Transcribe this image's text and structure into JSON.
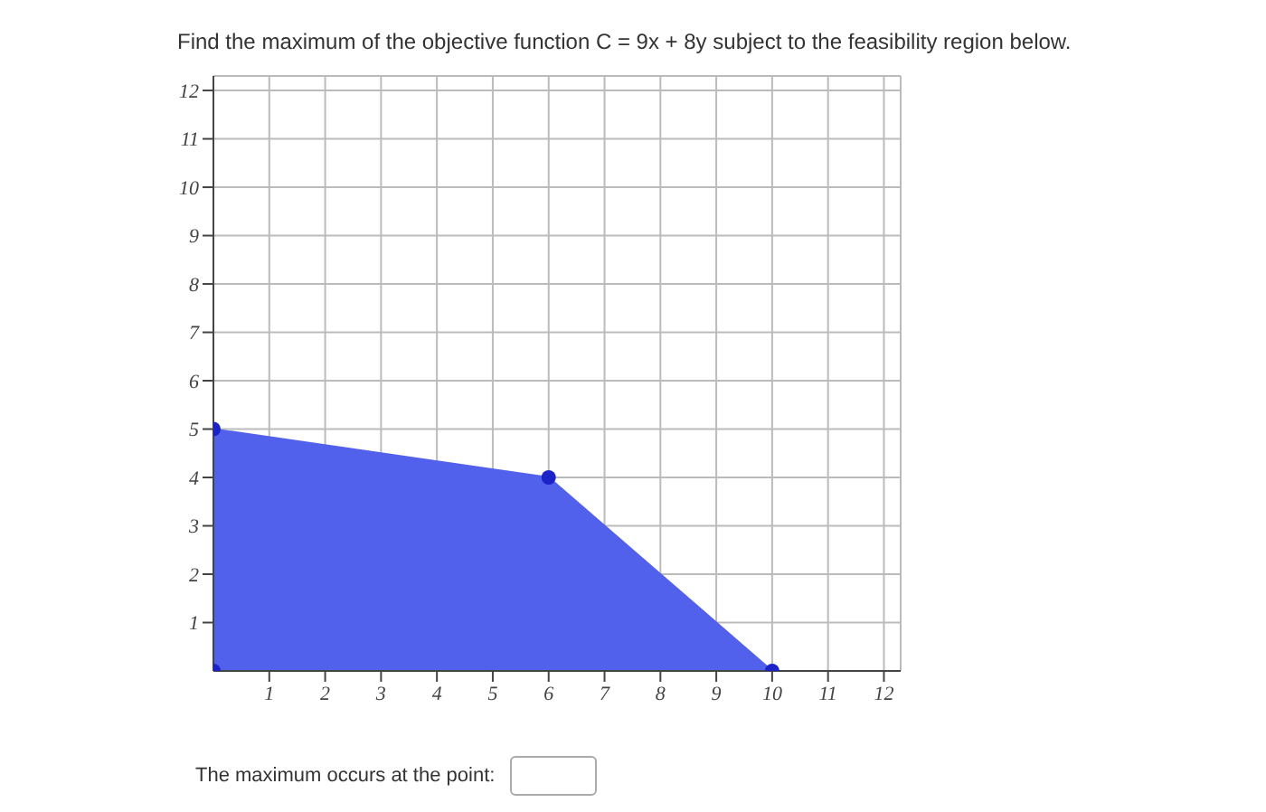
{
  "chart_data": {
    "type": "area",
    "title": "Find the maximum of the objective function C = 9x + 8y subject to the feasibility region below.",
    "series": [
      {
        "color": "#5261ec",
        "x": [
          0,
          6,
          10
        ],
        "values": [
          5,
          4,
          0
        ]
      },
      {
        "type": "scatter",
        "color": "#1a22c8",
        "x": [
          0
        ],
        "values": [
          0
        ]
      }
    ],
    "xlim": [
      0,
      12.3
    ],
    "ylim": [
      0,
      12.3
    ],
    "xticks": [
      1,
      2,
      3,
      4,
      5,
      6,
      7,
      8,
      9,
      10,
      11,
      12
    ],
    "yticks": [
      1,
      2,
      3,
      4,
      5,
      6,
      7,
      8,
      9,
      10,
      11,
      12
    ],
    "grid": true,
    "marker": "circle",
    "annotations": [
      "The maximum occurs at the point:"
    ]
  }
}
